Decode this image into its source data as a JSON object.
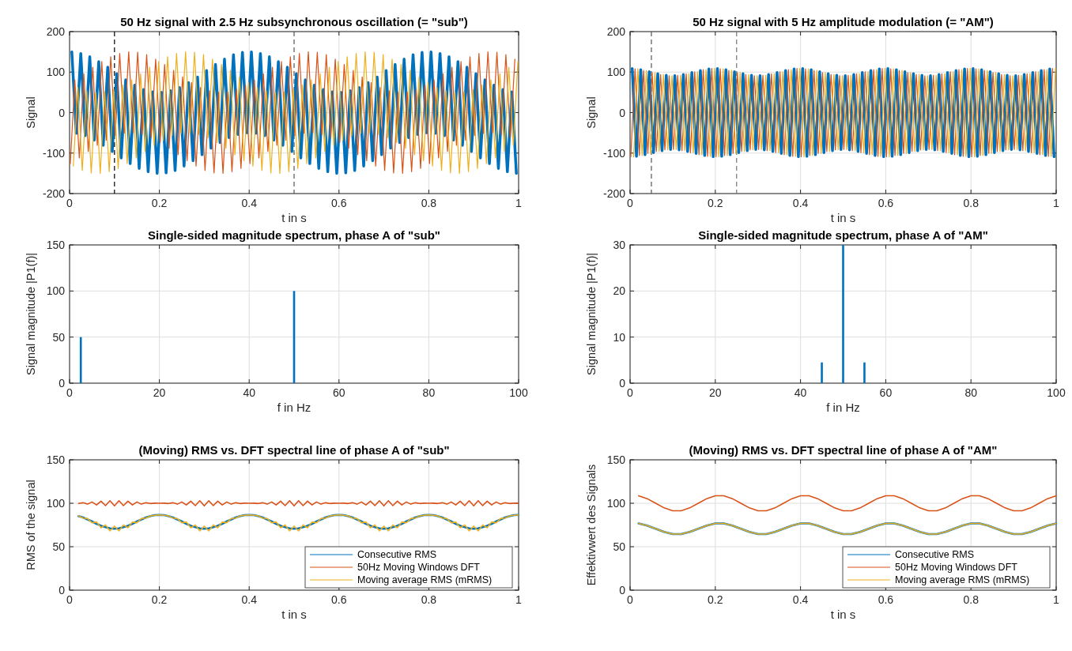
{
  "chart_data": [
    {
      "type": "line",
      "title": "50 Hz signal with 2.5 Hz subsynchronous oscillation (= \"sub\")",
      "xlabel": "t in s",
      "ylabel": "Signal",
      "xlim": [
        0,
        1
      ],
      "ylim": [
        -200,
        200
      ],
      "xticks": [
        0,
        0.2,
        0.4,
        0.6,
        0.8,
        1
      ],
      "yticks": [
        -200,
        -100,
        0,
        100,
        200
      ],
      "grid": true,
      "ref_lines": [
        {
          "axis": "x",
          "value": 0.1,
          "color": "#000000",
          "line_style": "dashed"
        },
        {
          "axis": "x",
          "value": 0.5,
          "color": "#555555",
          "line_style": "dashed"
        }
      ],
      "series": [
        {
          "color": "#0072bd",
          "x": [
            0.005,
            0.015,
            0.025,
            0.035,
            0.045,
            0.055,
            0.065,
            0.075,
            0.085,
            0.095,
            0.105,
            0.115,
            0.125,
            0.135,
            0.145,
            0.155,
            0.165,
            0.175,
            0.185,
            0.195,
            0.205,
            0.215,
            0.225,
            0.235,
            0.245,
            0.255,
            0.265,
            0.275,
            0.285,
            0.295,
            0.305,
            0.315,
            0.325,
            0.335,
            0.345,
            0.355,
            0.365,
            0.375,
            0.385,
            0.395,
            0.405,
            0.415,
            0.425,
            0.435,
            0.445,
            0.455,
            0.465,
            0.475,
            0.485,
            0.495,
            0.505,
            0.515,
            0.525,
            0.535,
            0.545,
            0.555,
            0.565,
            0.575,
            0.585,
            0.595,
            0.605,
            0.615,
            0.625,
            0.635,
            0.645,
            0.655,
            0.665,
            0.675,
            0.685,
            0.695,
            0.705,
            0.715,
            0.725,
            0.735,
            0.745,
            0.755,
            0.765,
            0.775,
            0.785,
            0.795,
            0.805,
            0.815,
            0.825,
            0.835,
            0.845,
            0.855,
            0.865,
            0.875,
            0.885,
            0.895,
            0.905,
            0.915,
            0.925,
            0.935,
            0.945,
            0.955,
            0.965,
            0.975,
            0.985,
            0.995
          ],
          "values": [
            150,
            -51,
            146,
            -57,
            138,
            -68,
            126,
            -81,
            112,
            -96,
            96,
            -112,
            81,
            -126,
            68,
            -138,
            57,
            -146,
            51,
            -150,
            50,
            -149,
            54,
            -143,
            62,
            -132,
            74,
            -119,
            88,
            -104,
            104,
            -88,
            119,
            -74,
            132,
            -62,
            143,
            -54,
            149,
            -50,
            150,
            -51,
            146,
            -57,
            138,
            -68,
            126,
            -81,
            112,
            -96,
            96,
            -112,
            81,
            -126,
            68,
            -138,
            57,
            -146,
            51,
            -150,
            50,
            -149,
            54,
            -143,
            62,
            -132,
            74,
            -119,
            88,
            -104,
            104,
            -88,
            119,
            -74,
            132,
            -62,
            143,
            -54,
            149,
            -50,
            150,
            -51,
            146,
            -57,
            138,
            -68,
            126,
            -81,
            112,
            -96,
            96,
            -112,
            81,
            -126,
            68,
            -138,
            57,
            -146,
            51,
            -150
          ]
        },
        {
          "color": "#d95319",
          "x": [
            0.0017,
            0.0117,
            0.0217,
            0.0317,
            0.0417,
            0.0517,
            0.0617,
            0.0717,
            0.0817,
            0.0917,
            0.1017,
            0.1117,
            0.1217,
            0.1317,
            0.1417,
            0.1517,
            0.1617,
            0.1717,
            0.1817,
            0.1917,
            0.2017,
            0.2117,
            0.2217,
            0.2317,
            0.2417,
            0.2517,
            0.2617,
            0.2717,
            0.2817,
            0.2917,
            0.3017,
            0.3117,
            0.3217,
            0.3317,
            0.3417,
            0.3517,
            0.3617,
            0.3717,
            0.3817,
            0.3917,
            0.4017,
            0.4117,
            0.4217,
            0.4317,
            0.4417,
            0.4517,
            0.4617,
            0.4717,
            0.4817,
            0.4917,
            0.5017,
            0.5117,
            0.5217,
            0.5317,
            0.5417,
            0.5517,
            0.5617,
            0.5717,
            0.5817,
            0.5917,
            0.6017,
            0.6117,
            0.6217,
            0.6317,
            0.6417,
            0.6517,
            0.6617,
            0.6717,
            0.6817,
            0.6917,
            0.7017,
            0.7117,
            0.7217,
            0.7317,
            0.7417,
            0.7517,
            0.7617,
            0.7717,
            0.7817,
            0.7917,
            0.8017,
            0.8117,
            0.8217,
            0.8317,
            0.8417,
            0.8517,
            0.8617,
            0.8717,
            0.8817,
            0.8917,
            0.9017,
            0.9117,
            0.9217,
            0.9317,
            0.9417,
            0.9517,
            0.9617,
            0.9717,
            0.9817,
            0.9917
          ],
          "values": [
            -126,
            81,
            -112,
            96,
            -96,
            112,
            -81,
            126,
            -68,
            138,
            -57,
            146,
            -51,
            150,
            -50,
            149,
            -54,
            143,
            -62,
            132,
            -74,
            119,
            -88,
            104,
            -104,
            88,
            -119,
            74,
            -132,
            62,
            -143,
            54,
            -149,
            50,
            -150,
            51,
            -146,
            57,
            -138,
            68,
            -126,
            81,
            -112,
            96,
            -96,
            112,
            -81,
            126,
            -68,
            138,
            -57,
            146,
            -51,
            150,
            -50,
            149,
            -54,
            143,
            -62,
            132,
            -74,
            119,
            -88,
            104,
            -104,
            88,
            -119,
            74,
            -132,
            62,
            -143,
            54,
            -149,
            50,
            -150,
            51,
            -146,
            57,
            -138,
            68,
            -126,
            81,
            -112,
            96,
            -96,
            112,
            -81,
            126,
            -68,
            138,
            -57,
            146,
            -51,
            150,
            -50,
            149,
            -54,
            143,
            -62,
            132
          ]
        },
        {
          "color": "#edb120",
          "x": [
            0.0083,
            0.0183,
            0.0283,
            0.0383,
            0.0483,
            0.0583,
            0.0683,
            0.0783,
            0.0883,
            0.0983,
            0.1083,
            0.1183,
            0.1283,
            0.1383,
            0.1483,
            0.1583,
            0.1683,
            0.1783,
            0.1883,
            0.1983,
            0.2083,
            0.2183,
            0.2283,
            0.2383,
            0.2483,
            0.2583,
            0.2683,
            0.2783,
            0.2883,
            0.2983,
            0.3083,
            0.3183,
            0.3283,
            0.3383,
            0.3483,
            0.3583,
            0.3683,
            0.3783,
            0.3883,
            0.3983,
            0.4083,
            0.4183,
            0.4283,
            0.4383,
            0.4483,
            0.4583,
            0.4683,
            0.4783,
            0.4883,
            0.4983,
            0.5083,
            0.5183,
            0.5283,
            0.5383,
            0.5483,
            0.5583,
            0.5683,
            0.5783,
            0.5883,
            0.5983,
            0.6083,
            0.6183,
            0.6283,
            0.6383,
            0.6483,
            0.6583,
            0.6683,
            0.6783,
            0.6883,
            0.6983,
            0.7083,
            0.7183,
            0.7283,
            0.7383,
            0.7483,
            0.7583,
            0.7683,
            0.7783,
            0.7883,
            0.7983,
            0.8083,
            0.8183,
            0.8283,
            0.8383,
            0.8483,
            0.8583,
            0.8683,
            0.8783,
            0.8883,
            0.8983,
            0.9083,
            0.9183,
            0.9283,
            0.9383,
            0.9483,
            0.9583,
            0.9683,
            0.9783,
            0.9883,
            0.9983
          ],
          "values": [
            -132,
            62,
            -143,
            54,
            -149,
            50,
            -150,
            51,
            -146,
            57,
            -138,
            68,
            -126,
            81,
            -112,
            96,
            -96,
            112,
            -81,
            126,
            -68,
            138,
            -57,
            146,
            -51,
            150,
            -50,
            149,
            -54,
            143,
            -62,
            132,
            -74,
            119,
            -88,
            104,
            -104,
            88,
            -119,
            74,
            -132,
            62,
            -143,
            54,
            -149,
            50,
            -150,
            51,
            -146,
            57,
            -138,
            68,
            -126,
            81,
            -112,
            96,
            -96,
            112,
            -81,
            126,
            -68,
            138,
            -57,
            146,
            -51,
            150,
            -50,
            149,
            -54,
            143,
            -62,
            132,
            -74,
            119,
            -88,
            104,
            -104,
            88,
            -119,
            74,
            -132,
            62,
            -143,
            54,
            -149,
            50,
            -150,
            51,
            -146,
            57,
            -138,
            68,
            -126,
            81,
            -112,
            96,
            -96,
            112,
            -81,
            126
          ]
        }
      ]
    },
    {
      "type": "line",
      "title": "50 Hz signal with 5 Hz amplitude modulation (= \"AM\")",
      "xlabel": "t in s",
      "ylabel": "Signal",
      "xlim": [
        0,
        1
      ],
      "ylim": [
        -200,
        200
      ],
      "xticks": [
        0,
        0.2,
        0.4,
        0.6,
        0.8,
        1
      ],
      "yticks": [
        -200,
        -100,
        0,
        100,
        200
      ],
      "grid": true,
      "ref_lines": [
        {
          "axis": "x",
          "value": 0.05,
          "color": "#555555",
          "line_style": "dashed"
        },
        {
          "axis": "x",
          "value": 0.25,
          "color": "#777777",
          "line_style": "dashed"
        }
      ],
      "series": [
        {
          "color": "#0072bd",
          "x": [
            0.005,
            0.015,
            0.025,
            0.035,
            0.045,
            0.055,
            0.065,
            0.075,
            0.085,
            0.095,
            0.105,
            0.115,
            0.125,
            0.135,
            0.145,
            0.155,
            0.165,
            0.175,
            0.185,
            0.195,
            0.205,
            0.215,
            0.225,
            0.235,
            0.245,
            0.255,
            0.265,
            0.275,
            0.285,
            0.295,
            0.305,
            0.315,
            0.325,
            0.335,
            0.345,
            0.355,
            0.365,
            0.375,
            0.385,
            0.395,
            0.405,
            0.415,
            0.425,
            0.435,
            0.445,
            0.455,
            0.465,
            0.475,
            0.485,
            0.495,
            0.505,
            0.515,
            0.525,
            0.535,
            0.545,
            0.555,
            0.565,
            0.575,
            0.585,
            0.595,
            0.605,
            0.615,
            0.625,
            0.635,
            0.645,
            0.655,
            0.665,
            0.675,
            0.685,
            0.695,
            0.705,
            0.715,
            0.725,
            0.735,
            0.745,
            0.755,
            0.765,
            0.775,
            0.785,
            0.795,
            0.805,
            0.815,
            0.825,
            0.835,
            0.845,
            0.855,
            0.865,
            0.875,
            0.885,
            0.895,
            0.905,
            0.915,
            0.925,
            0.935,
            0.945,
            0.955,
            0.965,
            0.975,
            0.985,
            0.995
          ],
          "values": [
            109,
            -108,
            106,
            -104,
            101,
            -99,
            96,
            -94,
            92,
            -91,
            91,
            -92,
            94,
            -96,
            99,
            -101,
            104,
            -106,
            108,
            -109,
            109,
            -108,
            106,
            -104,
            101,
            -99,
            96,
            -94,
            92,
            -91,
            91,
            -92,
            94,
            -96,
            99,
            -101,
            104,
            -106,
            108,
            -109,
            109,
            -108,
            106,
            -104,
            101,
            -99,
            96,
            -94,
            92,
            -91,
            91,
            -92,
            94,
            -96,
            99,
            -101,
            104,
            -106,
            108,
            -109,
            109,
            -108,
            106,
            -104,
            101,
            -99,
            96,
            -94,
            92,
            -91,
            91,
            -92,
            94,
            -96,
            99,
            -101,
            104,
            -106,
            108,
            -109,
            109,
            -108,
            106,
            -104,
            101,
            -99,
            96,
            -94,
            92,
            -91,
            91,
            -92,
            94,
            -96,
            99,
            -101,
            104,
            -106,
            108,
            -109
          ]
        },
        {
          "color": "#d95319",
          "x": [
            0.0017,
            0.0117,
            0.0217,
            0.0317,
            0.0417,
            0.0517,
            0.0617,
            0.0717,
            0.0817,
            0.0917,
            0.1017,
            0.1117,
            0.1217,
            0.1317,
            0.1417,
            0.1517,
            0.1617,
            0.1717,
            0.1817,
            0.1917,
            0.2017,
            0.2117,
            0.2217,
            0.2317,
            0.2417,
            0.2517,
            0.2617,
            0.2717,
            0.2817,
            0.2917,
            0.3017,
            0.3117,
            0.3217,
            0.3317,
            0.3417,
            0.3517,
            0.3617,
            0.3717,
            0.3817,
            0.3917,
            0.4017,
            0.4117,
            0.4217,
            0.4317,
            0.4417,
            0.4517,
            0.4617,
            0.4717,
            0.4817,
            0.4917,
            0.5017,
            0.5117,
            0.5217,
            0.5317,
            0.5417,
            0.5517,
            0.5617,
            0.5717,
            0.5817,
            0.5917,
            0.6017,
            0.6117,
            0.6217,
            0.6317,
            0.6417,
            0.6517,
            0.6617,
            0.6717,
            0.6817,
            0.6917,
            0.7017,
            0.7117,
            0.7217,
            0.7317,
            0.7417,
            0.7517,
            0.7617,
            0.7717,
            0.7817,
            0.7917,
            0.8017,
            0.8117,
            0.8217,
            0.8317,
            0.8417,
            0.8517,
            0.8617,
            0.8717,
            0.8817,
            0.8917,
            0.9017,
            0.9117,
            0.9217,
            0.9317,
            0.9417,
            0.9517,
            0.9617,
            0.9717,
            0.9817,
            0.9917
          ],
          "values": [
            -109,
            108,
            -106,
            104,
            -101,
            99,
            -96,
            94,
            -92,
            91,
            -91,
            92,
            -94,
            96,
            -99,
            101,
            -104,
            106,
            -108,
            109,
            -109,
            108,
            -106,
            104,
            -101,
            99,
            -96,
            94,
            -92,
            91,
            -91,
            92,
            -94,
            96,
            -99,
            101,
            -104,
            106,
            -108,
            109,
            -109,
            108,
            -106,
            104,
            -101,
            99,
            -96,
            94,
            -92,
            91,
            -91,
            92,
            -94,
            96,
            -99,
            101,
            -104,
            106,
            -108,
            109,
            -109,
            108,
            -106,
            104,
            -101,
            99,
            -96,
            94,
            -92,
            91,
            -91,
            92,
            -94,
            96,
            -99,
            101,
            -104,
            106,
            -108,
            109,
            -109,
            108,
            -106,
            104,
            -101,
            99,
            -96,
            94,
            -92,
            91,
            -91,
            92,
            -94,
            96,
            -99,
            101,
            -104,
            106,
            -108,
            109
          ]
        },
        {
          "color": "#edb120",
          "x": [
            0.0083,
            0.0183,
            0.0283,
            0.0383,
            0.0483,
            0.0583,
            0.0683,
            0.0783,
            0.0883,
            0.0983,
            0.1083,
            0.1183,
            0.1283,
            0.1383,
            0.1483,
            0.1583,
            0.1683,
            0.1783,
            0.1883,
            0.1983,
            0.2083,
            0.2183,
            0.2283,
            0.2383,
            0.2483,
            0.2583,
            0.2683,
            0.2783,
            0.2883,
            0.2983,
            0.3083,
            0.3183,
            0.3283,
            0.3383,
            0.3483,
            0.3583,
            0.3683,
            0.3783,
            0.3883,
            0.3983,
            0.4083,
            0.4183,
            0.4283,
            0.4383,
            0.4483,
            0.4583,
            0.4683,
            0.4783,
            0.4883,
            0.4983,
            0.5083,
            0.5183,
            0.5283,
            0.5383,
            0.5483,
            0.5583,
            0.5683,
            0.5783,
            0.5883,
            0.5983,
            0.6083,
            0.6183,
            0.6283,
            0.6383,
            0.6483,
            0.6583,
            0.6683,
            0.6783,
            0.6883,
            0.6983,
            0.7083,
            0.7183,
            0.7283,
            0.7383,
            0.7483,
            0.7583,
            0.7683,
            0.7783,
            0.7883,
            0.7983,
            0.8083,
            0.8183,
            0.8283,
            0.8383,
            0.8483,
            0.8583,
            0.8683,
            0.8783,
            0.8883,
            0.8983,
            0.9083,
            0.9183,
            0.9283,
            0.9383,
            0.9483,
            0.9583,
            0.9683,
            0.9783,
            0.9883,
            0.9983
          ],
          "values": [
            -109,
            108,
            -106,
            104,
            -101,
            99,
            -96,
            94,
            -92,
            91,
            -91,
            92,
            -94,
            96,
            -99,
            101,
            -104,
            106,
            -108,
            109,
            -109,
            108,
            -106,
            104,
            -101,
            99,
            -96,
            94,
            -92,
            91,
            -91,
            92,
            -94,
            96,
            -99,
            101,
            -104,
            106,
            -108,
            109,
            -109,
            108,
            -106,
            104,
            -101,
            99,
            -96,
            94,
            -92,
            91,
            -91,
            92,
            -94,
            96,
            -99,
            101,
            -104,
            106,
            -108,
            109,
            -109,
            108,
            -106,
            104,
            -101,
            99,
            -96,
            94,
            -92,
            91,
            -91,
            92,
            -94,
            96,
            -99,
            101,
            -104,
            106,
            -108,
            109,
            -109,
            108,
            -106,
            104,
            -101,
            99,
            -96,
            94,
            -92,
            91,
            -91,
            92,
            -94,
            96,
            -99,
            101,
            -104,
            106,
            -108,
            109
          ]
        }
      ]
    },
    {
      "type": "bar",
      "title": "Single-sided magnitude spectrum, phase A of \"sub\"",
      "xlabel": "f in Hz",
      "ylabel": "Signal magnitude |P1(f)|",
      "xlim": [
        0,
        100
      ],
      "ylim": [
        0,
        150
      ],
      "xticks": [
        0,
        20,
        40,
        60,
        80,
        100
      ],
      "yticks": [
        0,
        50,
        100,
        150
      ],
      "grid": true,
      "x": [
        2.5,
        50
      ],
      "values": [
        50,
        100
      ],
      "color": "#0072bd"
    },
    {
      "type": "bar",
      "title": "Single-sided magnitude spectrum, phase A of \"AM\"",
      "xlabel": "f in Hz",
      "ylabel": "Signal magnitude |P1(f)|",
      "xlim": [
        0,
        100
      ],
      "ylim": [
        0,
        30
      ],
      "xticks": [
        0,
        20,
        40,
        60,
        80,
        100
      ],
      "yticks": [
        0,
        10,
        20,
        30
      ],
      "grid": true,
      "x": [
        45,
        50,
        55
      ],
      "values": [
        4.5,
        30,
        4.5
      ],
      "color": "#0072bd"
    },
    {
      "type": "line",
      "title": "(Moving) RMS vs. DFT spectral line of phase A of \"sub\"",
      "xlabel": "t in s",
      "ylabel": "RMS of the signal",
      "xlim": [
        0,
        1
      ],
      "ylim": [
        0,
        150
      ],
      "xticks": [
        0,
        0.2,
        0.4,
        0.6,
        0.8,
        1
      ],
      "yticks": [
        0,
        50,
        100,
        150
      ],
      "grid": true,
      "legend": "bottom right",
      "x": [
        0.02,
        0.03,
        0.04,
        0.05,
        0.06,
        0.07,
        0.08,
        0.09,
        0.1,
        0.11,
        0.12,
        0.13,
        0.14,
        0.15,
        0.16,
        0.17,
        0.18,
        0.19,
        0.2,
        0.21,
        0.22,
        0.23,
        0.24,
        0.25,
        0.26,
        0.27,
        0.28,
        0.29,
        0.3,
        0.31,
        0.32,
        0.33,
        0.34,
        0.35,
        0.36,
        0.37,
        0.38,
        0.39,
        0.4,
        0.41,
        0.42,
        0.43,
        0.44,
        0.45,
        0.46,
        0.47,
        0.48,
        0.49,
        0.5,
        0.51,
        0.52,
        0.53,
        0.54,
        0.55,
        0.56,
        0.57,
        0.58,
        0.59,
        0.6,
        0.61,
        0.62,
        0.63,
        0.64,
        0.65,
        0.66,
        0.67,
        0.68,
        0.69,
        0.7,
        0.71,
        0.72,
        0.73,
        0.74,
        0.75,
        0.76,
        0.77,
        0.78,
        0.79,
        0.8,
        0.81,
        0.82,
        0.83,
        0.84,
        0.85,
        0.86,
        0.87,
        0.88,
        0.89,
        0.9,
        0.91,
        0.92,
        0.93,
        0.94,
        0.95,
        0.96,
        0.97,
        0.98,
        0.99,
        1
      ],
      "series": [
        {
          "name": "Consecutive RMS",
          "color": "#0072bd",
          "values": [
            85.2,
            83.6,
            81.4,
            79.1,
            76.3,
            74.2,
            72.4,
            71.1,
            70.7,
            71.1,
            72.4,
            74.2,
            76.3,
            79.1,
            81.4,
            83.6,
            85.2,
            86.3,
            86.6,
            86.3,
            85.2,
            83.6,
            81.4,
            79.1,
            76.3,
            74.2,
            72.4,
            71.1,
            70.7,
            71.1,
            72.4,
            74.2,
            76.3,
            79.1,
            81.4,
            83.6,
            85.2,
            86.3,
            86.6,
            86.3,
            85.2,
            83.6,
            81.4,
            79.1,
            76.3,
            74.2,
            72.4,
            71.1,
            70.7,
            71.1,
            72.4,
            74.2,
            76.3,
            79.1,
            81.4,
            83.6,
            85.2,
            86.3,
            86.6,
            86.3,
            85.2,
            83.6,
            81.4,
            79.1,
            76.3,
            74.2,
            72.4,
            71.1,
            70.7,
            71.1,
            72.4,
            74.2,
            76.3,
            79.1,
            81.4,
            83.6,
            85.2,
            86.3,
            86.6,
            86.3,
            85.2,
            83.6,
            81.4,
            79.1,
            76.3,
            74.2,
            72.4,
            71.1,
            70.7,
            71.1,
            72.4,
            74.2,
            76.3,
            79.1,
            81.4,
            83.6,
            85.2,
            86.3,
            86.6
          ]
        },
        {
          "name": "50Hz Moving Windows DFT",
          "color": "#d95319",
          "values": [
            99.7,
            100.6,
            99.0,
            101.5,
            98.0,
            102.4,
            97.3,
            102.9,
            97.0,
            102.9,
            97.3,
            102.4,
            98.0,
            101.5,
            99.0,
            100.6,
            99.7,
            100.1,
            100,
            100.1,
            99.7,
            100.6,
            99.0,
            101.5,
            98.0,
            102.4,
            97.3,
            102.9,
            97.0,
            102.9,
            97.3,
            102.4,
            98.0,
            101.5,
            99.0,
            100.6,
            99.7,
            100.1,
            100,
            100.1,
            99.7,
            100.6,
            99.0,
            101.5,
            98.0,
            102.4,
            97.3,
            102.9,
            97.0,
            102.9,
            97.3,
            102.4,
            98.0,
            101.5,
            99.0,
            100.6,
            99.7,
            100.1,
            100,
            100.1,
            99.7,
            100.6,
            99.0,
            101.5,
            98.0,
            102.4,
            97.3,
            102.9,
            97.0,
            102.9,
            97.3,
            102.4,
            98.0,
            101.5,
            99.0,
            100.6,
            99.7,
            100.1,
            100,
            100.1,
            99.7,
            100.6,
            99.0,
            101.5,
            98.0,
            102.4,
            97.3,
            102.9,
            97.0,
            102.9,
            97.3,
            102.4,
            98.0,
            101.5,
            99.0,
            100.6,
            99.7,
            100.1,
            100
          ]
        },
        {
          "name": "Moving average RMS (mRMS)",
          "color": "#edb120",
          "values": [
            85.5,
            83.0,
            82.4,
            77.6,
            78.3,
            71.8,
            75.1,
            68.2,
            73.7,
            68.2,
            75.1,
            71.8,
            78.3,
            77.6,
            82.4,
            83.0,
            85.5,
            86.2,
            86.6,
            86.2,
            85.5,
            83.0,
            82.4,
            77.6,
            78.3,
            71.8,
            75.1,
            68.2,
            73.7,
            68.2,
            75.1,
            71.8,
            78.3,
            77.6,
            82.4,
            83.0,
            85.5,
            86.2,
            86.6,
            86.2,
            85.5,
            83.0,
            82.4,
            77.6,
            78.3,
            71.8,
            75.1,
            68.2,
            73.7,
            68.2,
            75.1,
            71.8,
            78.3,
            77.6,
            82.4,
            83.0,
            85.5,
            86.2,
            86.6,
            86.2,
            85.5,
            83.0,
            82.4,
            77.6,
            78.3,
            71.8,
            75.1,
            68.2,
            73.7,
            68.2,
            75.1,
            71.8,
            78.3,
            77.6,
            82.4,
            83.0,
            85.5,
            86.2,
            86.6,
            86.2,
            85.5,
            83.0,
            82.4,
            77.6,
            78.3,
            71.8,
            75.1,
            68.2,
            73.7,
            68.2,
            75.1,
            71.8,
            78.3,
            77.6,
            82.4,
            83.0,
            85.5,
            86.2,
            86.6
          ]
        }
      ]
    },
    {
      "type": "line",
      "title": "(Moving) RMS vs. DFT spectral line of phase A of \"AM\"",
      "xlabel": "t in s",
      "ylabel": "Effektivwert des Signals",
      "xlim": [
        0,
        1
      ],
      "ylim": [
        0,
        150
      ],
      "xticks": [
        0,
        0.2,
        0.4,
        0.6,
        0.8,
        1
      ],
      "yticks": [
        0,
        50,
        100,
        150
      ],
      "grid": true,
      "legend": "bottom right",
      "x": [
        0.02,
        0.04,
        0.06,
        0.08,
        0.1,
        0.12,
        0.14,
        0.16,
        0.18,
        0.2,
        0.22,
        0.24,
        0.26,
        0.28,
        0.3,
        0.32,
        0.34,
        0.36,
        0.38,
        0.4,
        0.42,
        0.44,
        0.46,
        0.48,
        0.5,
        0.52,
        0.54,
        0.56,
        0.58,
        0.6,
        0.62,
        0.64,
        0.66,
        0.68,
        0.7,
        0.72,
        0.74,
        0.76,
        0.78,
        0.8,
        0.82,
        0.84,
        0.86,
        0.88,
        0.9,
        0.92,
        0.94,
        0.96,
        0.98,
        1
      ],
      "series": [
        {
          "name": "Consecutive RMS",
          "color": "#0072bd",
          "values": [
            76.8,
            74.4,
            70.7,
            67.0,
            64.6,
            64.6,
            67.0,
            70.7,
            74.4,
            76.8,
            76.8,
            74.4,
            70.7,
            67.0,
            64.6,
            64.6,
            67.0,
            70.7,
            74.4,
            76.8,
            76.8,
            74.4,
            70.7,
            67.0,
            64.6,
            64.6,
            67.0,
            70.7,
            74.4,
            76.8,
            76.8,
            74.4,
            70.7,
            67.0,
            64.6,
            64.6,
            67.0,
            70.7,
            74.4,
            76.8,
            76.8,
            74.4,
            70.7,
            67.0,
            64.6,
            64.6,
            67.0,
            70.7,
            74.4,
            76.8
          ]
        },
        {
          "name": "50Hz Moving Windows DFT",
          "color": "#d95319",
          "values": [
            108.6,
            105.3,
            100,
            94.7,
            91.4,
            91.4,
            94.7,
            100,
            105.3,
            108.6,
            108.6,
            105.3,
            100,
            94.7,
            91.4,
            91.4,
            94.7,
            100,
            105.3,
            108.6,
            108.6,
            105.3,
            100,
            94.7,
            91.4,
            91.4,
            94.7,
            100,
            105.3,
            108.6,
            108.6,
            105.3,
            100,
            94.7,
            91.4,
            91.4,
            94.7,
            100,
            105.3,
            108.6,
            108.6,
            105.3,
            100,
            94.7,
            91.4,
            91.4,
            94.7,
            100,
            105.3,
            108.6
          ]
        },
        {
          "name": "Moving average RMS (mRMS)",
          "color": "#edb120",
          "values": [
            76.8,
            74.4,
            70.7,
            67.0,
            64.6,
            64.6,
            67.0,
            70.7,
            74.4,
            76.8,
            76.8,
            74.4,
            70.7,
            67.0,
            64.6,
            64.6,
            67.0,
            70.7,
            74.4,
            76.8,
            76.8,
            74.4,
            70.7,
            67.0,
            64.6,
            64.6,
            67.0,
            70.7,
            74.4,
            76.8,
            76.8,
            74.4,
            70.7,
            67.0,
            64.6,
            64.6,
            67.0,
            70.7,
            74.4,
            76.8,
            76.8,
            74.4,
            70.7,
            67.0,
            64.6,
            64.6,
            67.0,
            70.7,
            74.4,
            76.8
          ]
        }
      ]
    }
  ]
}
